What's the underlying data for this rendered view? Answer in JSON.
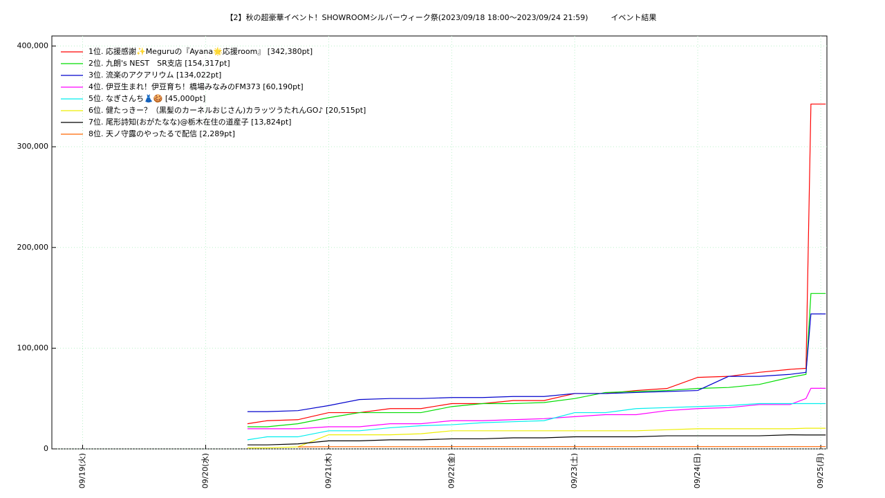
{
  "chart_data": {
    "type": "line",
    "title": "【2】秋の超豪華イベント！SHOWROOMシルバーウィーク祭(2023/09/18 18:00～2023/09/24 21:59)　　　イベント結果",
    "x": [
      1.34,
      1.5,
      1.75,
      2.0,
      2.25,
      2.5,
      2.75,
      3.0,
      3.25,
      3.5,
      3.75,
      4.0,
      4.25,
      4.5,
      4.75,
      5.0,
      5.25,
      5.5,
      5.75,
      5.88,
      5.92,
      6.04
    ],
    "xlim": [
      -0.25,
      6.05
    ],
    "xticks": [
      {
        "value": 0,
        "label": "09/19(火)"
      },
      {
        "value": 1,
        "label": "09/20(水)"
      },
      {
        "value": 2,
        "label": "09/21(木)"
      },
      {
        "value": 3,
        "label": "09/22(金)"
      },
      {
        "value": 4,
        "label": "09/23(土)"
      },
      {
        "value": 5,
        "label": "09/24(日)"
      },
      {
        "value": 6,
        "label": "09/25(月)"
      }
    ],
    "ylim": [
      0,
      410000
    ],
    "yticks": [
      {
        "value": 0,
        "label": "0"
      },
      {
        "value": 100000,
        "label": "100,000"
      },
      {
        "value": 200000,
        "label": "200,000"
      },
      {
        "value": 300000,
        "label": "300,000"
      },
      {
        "value": 400000,
        "label": "400,000"
      }
    ],
    "grid": true,
    "legend": "upper left",
    "series": [
      {
        "name": "1位. 応援感謝✨Meguruの『Ayana🌟応援room』 [342,380pt]",
        "color": "#ff0000",
        "values": [
          25000,
          28000,
          29000,
          36000,
          36000,
          40000,
          40000,
          45000,
          45000,
          48000,
          48000,
          55000,
          55000,
          58000,
          60000,
          71000,
          72000,
          76000,
          79000,
          80000,
          342380,
          342380
        ]
      },
      {
        "name": "2位. 九朗's NEST　SR支店 [154,317pt]",
        "color": "#00dd00",
        "values": [
          22000,
          22000,
          25000,
          31000,
          36000,
          36000,
          36000,
          42000,
          45000,
          45000,
          46000,
          50000,
          56000,
          57000,
          58000,
          60000,
          61000,
          64000,
          71000,
          74000,
          154317,
          154317
        ]
      },
      {
        "name": "3位. 流楽のアクアリウム [134,022pt]",
        "color": "#0000cc",
        "values": [
          37000,
          37000,
          38000,
          43000,
          49000,
          50000,
          50000,
          51000,
          51000,
          52000,
          52000,
          55000,
          55000,
          56000,
          57000,
          58000,
          72000,
          72000,
          74000,
          76000,
          134022,
          134022
        ]
      },
      {
        "name": "4位. 伊豆生まれ！伊豆育ち！橋場みなみのFM373 [60,190pt]",
        "color": "#ff00ff",
        "values": [
          20000,
          20000,
          20000,
          22000,
          22000,
          25000,
          25000,
          28000,
          28000,
          29000,
          30000,
          32000,
          34000,
          34000,
          38000,
          40000,
          41000,
          44000,
          44000,
          50000,
          60190,
          60190
        ]
      },
      {
        "name": "5位. なぎさんち👗🍪 [45,000pt]",
        "color": "#00eeee",
        "values": [
          9000,
          12000,
          12000,
          18000,
          18000,
          21000,
          23000,
          24000,
          26000,
          27000,
          28000,
          36000,
          36000,
          40000,
          41000,
          42000,
          43000,
          45000,
          45000,
          45000,
          45000,
          45000
        ]
      },
      {
        "name": "6位. 健たっきー？（黒髪のカーネルおじさん)カラッツうたれんGO♪ [20,515pt]",
        "color": "#eeee00",
        "values": [
          1000,
          1000,
          2000,
          14000,
          14000,
          14000,
          15000,
          18000,
          18000,
          18000,
          18000,
          18000,
          18000,
          18000,
          19000,
          20000,
          20000,
          20000,
          20000,
          20515,
          20515,
          20515
        ]
      },
      {
        "name": "7位. 尾形詩知(おがたなな)@栃木在住の道産子 [13,824pt]",
        "color": "#000000",
        "values": [
          4000,
          4000,
          5000,
          8000,
          8000,
          9000,
          9000,
          10000,
          10000,
          11000,
          11000,
          12000,
          12000,
          12000,
          13000,
          13000,
          13000,
          13000,
          14000,
          13824,
          13824,
          13824
        ]
      },
      {
        "name": "8位. 天ノ守露のやったるで配信 [2,289pt]",
        "color": "#ff6600",
        "values": [
          null,
          null,
          2000,
          2200,
          2200,
          2200,
          2200,
          2289,
          2289,
          2289,
          2289,
          2289,
          2289,
          2289,
          2289,
          2289,
          2289,
          2289,
          2289,
          2289,
          2289,
          2289
        ]
      }
    ]
  }
}
